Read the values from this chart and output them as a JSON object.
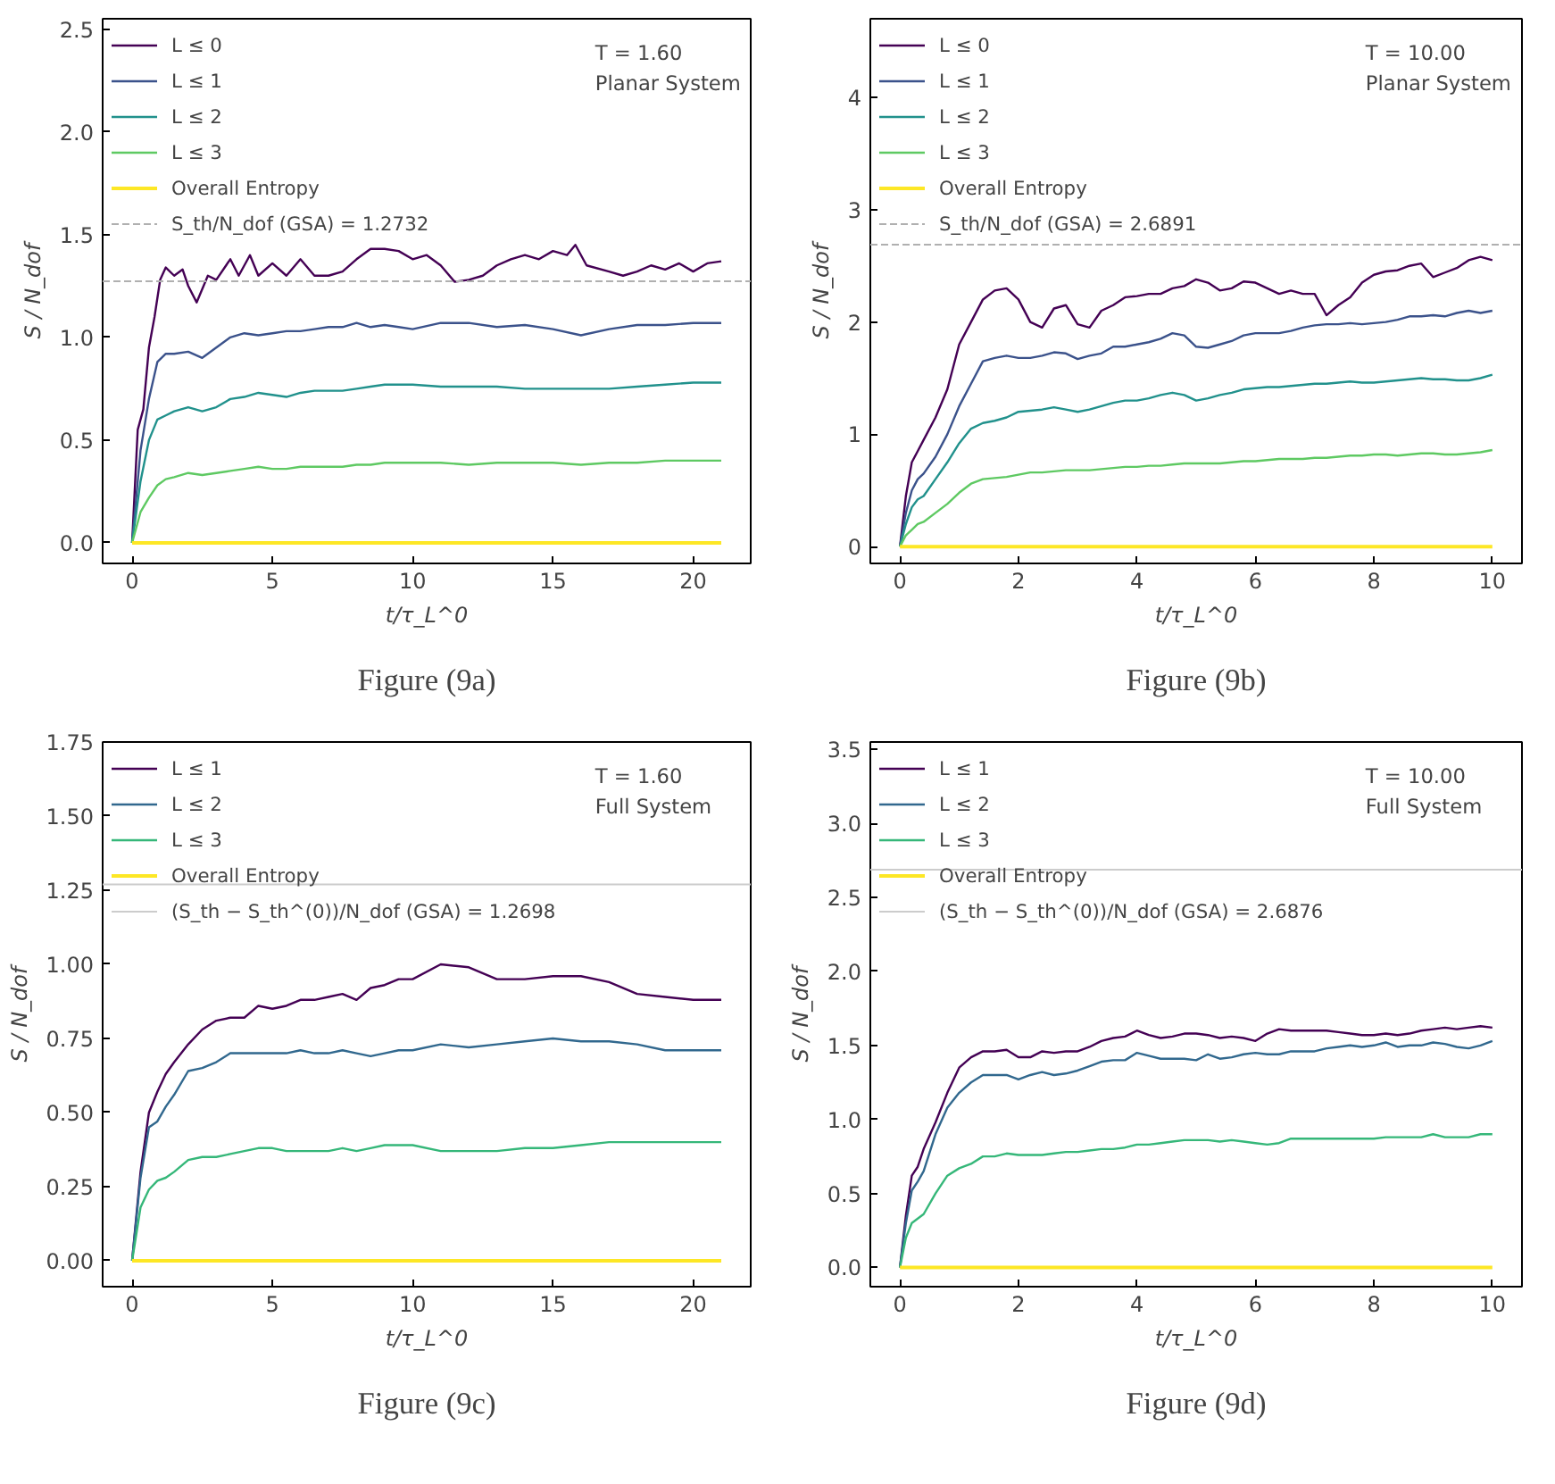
{
  "chart_data": [
    {
      "type": "line",
      "title": "Figure (9a)",
      "xlabel": "t/τ_L^0",
      "ylabel": "S / N_dof",
      "annotations": [
        "T = 1.60",
        "Planar System"
      ],
      "legend": "top left",
      "grid": false,
      "xlim": [
        -1.05,
        22.05
      ],
      "ylim": [
        -0.1,
        2.55
      ],
      "xticks": [
        0,
        5,
        10,
        15,
        20
      ],
      "yticks": [
        {
          "value": 0,
          "label": "0.0"
        },
        {
          "value": 0.5,
          "label": "0.5"
        },
        {
          "value": 1,
          "label": "1.0"
        },
        {
          "value": 1.5,
          "label": "1.5"
        },
        {
          "value": 2,
          "label": "2.0"
        },
        {
          "value": 2.5,
          "label": "2.5"
        }
      ],
      "x": [
        0,
        0.3,
        0.6,
        0.9,
        1.2,
        1.5,
        2,
        2.5,
        3,
        3.5,
        4,
        4.5,
        5,
        5.5,
        6,
        6.5,
        7,
        7.5,
        8,
        8.5,
        9,
        9.5,
        10,
        11,
        12,
        13,
        14,
        15,
        16,
        17,
        18,
        19,
        20,
        21
      ],
      "series": [
        {
          "name": "L ≤ 0",
          "color": "#440154",
          "x": [
            0,
            0.2,
            0.4,
            0.6,
            0.8,
            1.0,
            1.2,
            1.5,
            1.8,
            2.0,
            2.3,
            2.7,
            3.0,
            3.5,
            3.8,
            4.2,
            4.5,
            5,
            5.5,
            6,
            6.5,
            7,
            7.5,
            8,
            8.5,
            9,
            9.5,
            10,
            10.5,
            11,
            11.5,
            12,
            12.5,
            13,
            13.5,
            14,
            14.5,
            15,
            15.5,
            15.8,
            16.2,
            17,
            17.5,
            18,
            18.5,
            19,
            19.5,
            20,
            20.5,
            21
          ],
          "values": [
            0,
            0.55,
            0.65,
            0.95,
            1.1,
            1.28,
            1.34,
            1.3,
            1.33,
            1.25,
            1.17,
            1.3,
            1.28,
            1.38,
            1.3,
            1.4,
            1.3,
            1.36,
            1.3,
            1.38,
            1.3,
            1.3,
            1.32,
            1.38,
            1.43,
            1.43,
            1.42,
            1.38,
            1.4,
            1.35,
            1.27,
            1.28,
            1.3,
            1.35,
            1.38,
            1.4,
            1.38,
            1.42,
            1.4,
            1.45,
            1.35,
            1.32,
            1.3,
            1.32,
            1.35,
            1.33,
            1.36,
            1.32,
            1.36,
            1.37
          ]
        },
        {
          "name": "L ≤ 1",
          "color": "#3b528b",
          "values": [
            0,
            0.45,
            0.7,
            0.88,
            0.92,
            0.92,
            0.93,
            0.9,
            0.95,
            1.0,
            1.02,
            1.01,
            1.02,
            1.03,
            1.03,
            1.04,
            1.05,
            1.05,
            1.07,
            1.05,
            1.06,
            1.05,
            1.04,
            1.07,
            1.07,
            1.05,
            1.06,
            1.04,
            1.01,
            1.04,
            1.06,
            1.06,
            1.07,
            1.07
          ]
        },
        {
          "name": "L ≤ 2",
          "color": "#21918c",
          "values": [
            0,
            0.3,
            0.5,
            0.6,
            0.62,
            0.64,
            0.66,
            0.64,
            0.66,
            0.7,
            0.71,
            0.73,
            0.72,
            0.71,
            0.73,
            0.74,
            0.74,
            0.74,
            0.75,
            0.76,
            0.77,
            0.77,
            0.77,
            0.76,
            0.76,
            0.76,
            0.75,
            0.75,
            0.75,
            0.75,
            0.76,
            0.77,
            0.78,
            0.78
          ]
        },
        {
          "name": "L ≤ 3",
          "color": "#5ec962",
          "values": [
            0,
            0.15,
            0.22,
            0.28,
            0.31,
            0.32,
            0.34,
            0.33,
            0.34,
            0.35,
            0.36,
            0.37,
            0.36,
            0.36,
            0.37,
            0.37,
            0.37,
            0.37,
            0.38,
            0.38,
            0.39,
            0.39,
            0.39,
            0.39,
            0.38,
            0.39,
            0.39,
            0.39,
            0.38,
            0.39,
            0.39,
            0.4,
            0.4,
            0.4
          ]
        },
        {
          "name": "Overall Entropy",
          "color": "#fde725",
          "x": [
            0,
            21
          ],
          "values": [
            0,
            0
          ]
        }
      ],
      "ref_lines": [
        {
          "axis": "y",
          "value": 1.2732,
          "label": "S_th/N_dof (GSA) = 1.2732",
          "color": "#b0b0b0",
          "line_style": "dashed"
        }
      ]
    },
    {
      "type": "line",
      "title": "Figure (9b)",
      "xlabel": "t/τ_L^0",
      "ylabel": "S / N_dof",
      "annotations": [
        "T = 10.00",
        "Planar System"
      ],
      "legend": "top left",
      "grid": false,
      "xlim": [
        -0.5,
        10.5
      ],
      "ylim": [
        -0.15,
        4.7
      ],
      "xticks": [
        0,
        2,
        4,
        6,
        8,
        10
      ],
      "yticks": [
        0,
        1,
        2,
        3,
        4
      ],
      "x": [
        0,
        0.1,
        0.2,
        0.3,
        0.4,
        0.6,
        0.8,
        1.0,
        1.2,
        1.4,
        1.6,
        1.8,
        2.0,
        2.2,
        2.4,
        2.6,
        2.8,
        3.0,
        3.2,
        3.4,
        3.6,
        3.8,
        4.0,
        4.2,
        4.4,
        4.6,
        4.8,
        5.0,
        5.2,
        5.4,
        5.6,
        5.8,
        6.0,
        6.2,
        6.4,
        6.6,
        6.8,
        7.0,
        7.2,
        7.4,
        7.6,
        7.8,
        8.0,
        8.2,
        8.4,
        8.6,
        8.8,
        9.0,
        9.2,
        9.4,
        9.6,
        9.8,
        10.0
      ],
      "series": [
        {
          "name": "L ≤ 0",
          "color": "#440154",
          "values": [
            0,
            0.45,
            0.75,
            0.85,
            0.95,
            1.15,
            1.4,
            1.8,
            2.0,
            2.2,
            2.28,
            2.3,
            2.2,
            2.0,
            1.95,
            2.12,
            2.15,
            1.98,
            1.95,
            2.1,
            2.15,
            2.22,
            2.23,
            2.25,
            2.25,
            2.3,
            2.32,
            2.38,
            2.35,
            2.28,
            2.3,
            2.36,
            2.35,
            2.3,
            2.25,
            2.28,
            2.25,
            2.25,
            2.06,
            2.15,
            2.22,
            2.35,
            2.42,
            2.45,
            2.46,
            2.5,
            2.52,
            2.4,
            2.44,
            2.48,
            2.55,
            2.58,
            2.55
          ]
        },
        {
          "name": "L ≤ 1",
          "color": "#3b528b",
          "values": [
            0,
            0.3,
            0.5,
            0.6,
            0.65,
            0.8,
            1.0,
            1.25,
            1.45,
            1.65,
            1.68,
            1.7,
            1.68,
            1.68,
            1.7,
            1.73,
            1.72,
            1.67,
            1.7,
            1.72,
            1.78,
            1.78,
            1.8,
            1.82,
            1.85,
            1.9,
            1.88,
            1.78,
            1.77,
            1.8,
            1.83,
            1.88,
            1.9,
            1.9,
            1.9,
            1.92,
            1.95,
            1.97,
            1.98,
            1.98,
            1.99,
            1.98,
            1.99,
            2.0,
            2.02,
            2.05,
            2.05,
            2.06,
            2.05,
            2.08,
            2.1,
            2.08,
            2.1
          ]
        },
        {
          "name": "L ≤ 2",
          "color": "#21918c",
          "values": [
            0,
            0.2,
            0.35,
            0.42,
            0.45,
            0.6,
            0.75,
            0.92,
            1.05,
            1.1,
            1.12,
            1.15,
            1.2,
            1.21,
            1.22,
            1.24,
            1.22,
            1.2,
            1.22,
            1.25,
            1.28,
            1.3,
            1.3,
            1.32,
            1.35,
            1.37,
            1.35,
            1.3,
            1.32,
            1.35,
            1.37,
            1.4,
            1.41,
            1.42,
            1.42,
            1.43,
            1.44,
            1.45,
            1.45,
            1.46,
            1.47,
            1.46,
            1.46,
            1.47,
            1.48,
            1.49,
            1.5,
            1.49,
            1.49,
            1.48,
            1.48,
            1.5,
            1.53
          ]
        },
        {
          "name": "L ≤ 3",
          "color": "#5ec962",
          "values": [
            0,
            0.1,
            0.15,
            0.2,
            0.22,
            0.3,
            0.38,
            0.48,
            0.56,
            0.6,
            0.61,
            0.62,
            0.64,
            0.66,
            0.66,
            0.67,
            0.68,
            0.68,
            0.68,
            0.69,
            0.7,
            0.71,
            0.71,
            0.72,
            0.72,
            0.73,
            0.74,
            0.74,
            0.74,
            0.74,
            0.75,
            0.76,
            0.76,
            0.77,
            0.78,
            0.78,
            0.78,
            0.79,
            0.79,
            0.8,
            0.81,
            0.81,
            0.82,
            0.82,
            0.81,
            0.82,
            0.83,
            0.83,
            0.82,
            0.82,
            0.83,
            0.84,
            0.86
          ]
        },
        {
          "name": "Overall Entropy",
          "color": "#fde725",
          "x": [
            0,
            10
          ],
          "values": [
            0,
            0
          ]
        }
      ],
      "ref_lines": [
        {
          "axis": "y",
          "value": 2.6891,
          "label": "S_th/N_dof (GSA) = 2.6891",
          "color": "#b0b0b0",
          "line_style": "dashed"
        }
      ]
    },
    {
      "type": "line",
      "title": "Figure (9c)",
      "xlabel": "t/τ_L^0",
      "ylabel": "S / N_dof",
      "annotations": [
        "T = 1.60",
        "Full System"
      ],
      "legend": "top left",
      "grid": false,
      "xlim": [
        -1.05,
        22.05
      ],
      "ylim": [
        -0.0875,
        1.75
      ],
      "xticks": [
        0,
        5,
        10,
        15,
        20
      ],
      "yticks": [
        {
          "value": 0,
          "label": "0.00"
        },
        {
          "value": 0.25,
          "label": "0.25"
        },
        {
          "value": 0.5,
          "label": "0.50"
        },
        {
          "value": 0.75,
          "label": "0.75"
        },
        {
          "value": 1,
          "label": "1.00"
        },
        {
          "value": 1.25,
          "label": "1.25"
        },
        {
          "value": 1.5,
          "label": "1.50"
        },
        {
          "value": 1.75,
          "label": "1.75"
        }
      ],
      "x": [
        0,
        0.3,
        0.6,
        0.9,
        1.2,
        1.5,
        2,
        2.5,
        3,
        3.5,
        4,
        4.5,
        5,
        5.5,
        6,
        6.5,
        7,
        7.5,
        8,
        8.5,
        9,
        9.5,
        10,
        11,
        12,
        13,
        14,
        15,
        16,
        17,
        18,
        19,
        20,
        21
      ],
      "series": [
        {
          "name": "L ≤ 1",
          "color": "#440154",
          "values": [
            0,
            0.3,
            0.5,
            0.57,
            0.63,
            0.67,
            0.73,
            0.78,
            0.81,
            0.82,
            0.82,
            0.86,
            0.85,
            0.86,
            0.88,
            0.88,
            0.89,
            0.9,
            0.88,
            0.92,
            0.93,
            0.95,
            0.95,
            1.0,
            0.99,
            0.95,
            0.95,
            0.96,
            0.96,
            0.94,
            0.9,
            0.89,
            0.88,
            0.88
          ]
        },
        {
          "name": "L ≤ 2",
          "color": "#31688e",
          "values": [
            0,
            0.28,
            0.45,
            0.47,
            0.52,
            0.56,
            0.64,
            0.65,
            0.67,
            0.7,
            0.7,
            0.7,
            0.7,
            0.7,
            0.71,
            0.7,
            0.7,
            0.71,
            0.7,
            0.69,
            0.7,
            0.71,
            0.71,
            0.73,
            0.72,
            0.73,
            0.74,
            0.75,
            0.74,
            0.74,
            0.73,
            0.71,
            0.71,
            0.71
          ]
        },
        {
          "name": "L ≤ 3",
          "color": "#35b779",
          "values": [
            0,
            0.18,
            0.24,
            0.27,
            0.28,
            0.3,
            0.34,
            0.35,
            0.35,
            0.36,
            0.37,
            0.38,
            0.38,
            0.37,
            0.37,
            0.37,
            0.37,
            0.38,
            0.37,
            0.38,
            0.39,
            0.39,
            0.39,
            0.37,
            0.37,
            0.37,
            0.38,
            0.38,
            0.39,
            0.4,
            0.4,
            0.4,
            0.4,
            0.4
          ]
        },
        {
          "name": "Overall Entropy",
          "color": "#fde725",
          "x": [
            0,
            21
          ],
          "values": [
            0,
            0
          ]
        }
      ],
      "ref_lines": [
        {
          "axis": "y",
          "value": 1.2698,
          "label": "(S_th − S_th^(0))/N_dof (GSA) = 1.2698",
          "color": "#cccccc",
          "line_style": "solid"
        }
      ]
    },
    {
      "type": "line",
      "title": "Figure (9d)",
      "xlabel": "t/τ_L^0",
      "ylabel": "S / N_dof",
      "annotations": [
        "T = 10.00",
        "Full System"
      ],
      "legend": "top left",
      "grid": false,
      "xlim": [
        -0.5,
        10.5
      ],
      "ylim": [
        -0.13,
        3.55
      ],
      "xticks": [
        0,
        2,
        4,
        6,
        8,
        10
      ],
      "yticks": [
        {
          "value": 0,
          "label": "0.0"
        },
        {
          "value": 0.5,
          "label": "0.5"
        },
        {
          "value": 1,
          "label": "1.0"
        },
        {
          "value": 1.5,
          "label": "1.5"
        },
        {
          "value": 2,
          "label": "2.0"
        },
        {
          "value": 2.5,
          "label": "2.5"
        },
        {
          "value": 3,
          "label": "3.0"
        },
        {
          "value": 3.5,
          "label": "3.5"
        }
      ],
      "x": [
        0,
        0.1,
        0.2,
        0.3,
        0.4,
        0.6,
        0.8,
        1.0,
        1.2,
        1.4,
        1.6,
        1.8,
        2.0,
        2.2,
        2.4,
        2.6,
        2.8,
        3.0,
        3.2,
        3.4,
        3.6,
        3.8,
        4.0,
        4.2,
        4.4,
        4.6,
        4.8,
        5.0,
        5.2,
        5.4,
        5.6,
        5.8,
        6.0,
        6.2,
        6.4,
        6.6,
        6.8,
        7.0,
        7.2,
        7.4,
        7.6,
        7.8,
        8.0,
        8.2,
        8.4,
        8.6,
        8.8,
        9.0,
        9.2,
        9.4,
        9.6,
        9.8,
        10.0
      ],
      "series": [
        {
          "name": "L ≤ 1",
          "color": "#440154",
          "values": [
            0,
            0.35,
            0.62,
            0.68,
            0.8,
            0.98,
            1.18,
            1.35,
            1.42,
            1.46,
            1.46,
            1.47,
            1.42,
            1.42,
            1.46,
            1.45,
            1.46,
            1.46,
            1.49,
            1.53,
            1.55,
            1.56,
            1.6,
            1.57,
            1.55,
            1.56,
            1.58,
            1.58,
            1.57,
            1.55,
            1.56,
            1.55,
            1.53,
            1.58,
            1.61,
            1.6,
            1.6,
            1.6,
            1.6,
            1.59,
            1.58,
            1.57,
            1.57,
            1.58,
            1.57,
            1.58,
            1.6,
            1.61,
            1.62,
            1.61,
            1.62,
            1.63,
            1.62
          ]
        },
        {
          "name": "L ≤ 2",
          "color": "#31688e",
          "values": [
            0,
            0.3,
            0.52,
            0.58,
            0.65,
            0.9,
            1.08,
            1.18,
            1.25,
            1.3,
            1.3,
            1.3,
            1.27,
            1.3,
            1.32,
            1.3,
            1.31,
            1.33,
            1.36,
            1.39,
            1.4,
            1.4,
            1.45,
            1.43,
            1.41,
            1.41,
            1.41,
            1.4,
            1.44,
            1.41,
            1.42,
            1.44,
            1.45,
            1.44,
            1.44,
            1.46,
            1.46,
            1.46,
            1.48,
            1.49,
            1.5,
            1.49,
            1.5,
            1.52,
            1.49,
            1.5,
            1.5,
            1.52,
            1.51,
            1.49,
            1.48,
            1.5,
            1.53
          ]
        },
        {
          "name": "L ≤ 3",
          "color": "#35b779",
          "values": [
            0,
            0.2,
            0.3,
            0.33,
            0.36,
            0.5,
            0.62,
            0.67,
            0.7,
            0.75,
            0.75,
            0.77,
            0.76,
            0.76,
            0.76,
            0.77,
            0.78,
            0.78,
            0.79,
            0.8,
            0.8,
            0.81,
            0.83,
            0.83,
            0.84,
            0.85,
            0.86,
            0.86,
            0.86,
            0.85,
            0.86,
            0.85,
            0.84,
            0.83,
            0.84,
            0.87,
            0.87,
            0.87,
            0.87,
            0.87,
            0.87,
            0.87,
            0.87,
            0.88,
            0.88,
            0.88,
            0.88,
            0.9,
            0.88,
            0.88,
            0.88,
            0.9,
            0.9
          ]
        },
        {
          "name": "Overall Entropy",
          "color": "#fde725",
          "x": [
            0,
            10
          ],
          "values": [
            0,
            0
          ]
        }
      ],
      "ref_lines": [
        {
          "axis": "y",
          "value": 2.6876,
          "label": "(S_th − S_th^(0))/N_dof (GSA) = 2.6876",
          "color": "#cccccc",
          "line_style": "solid"
        }
      ]
    }
  ]
}
